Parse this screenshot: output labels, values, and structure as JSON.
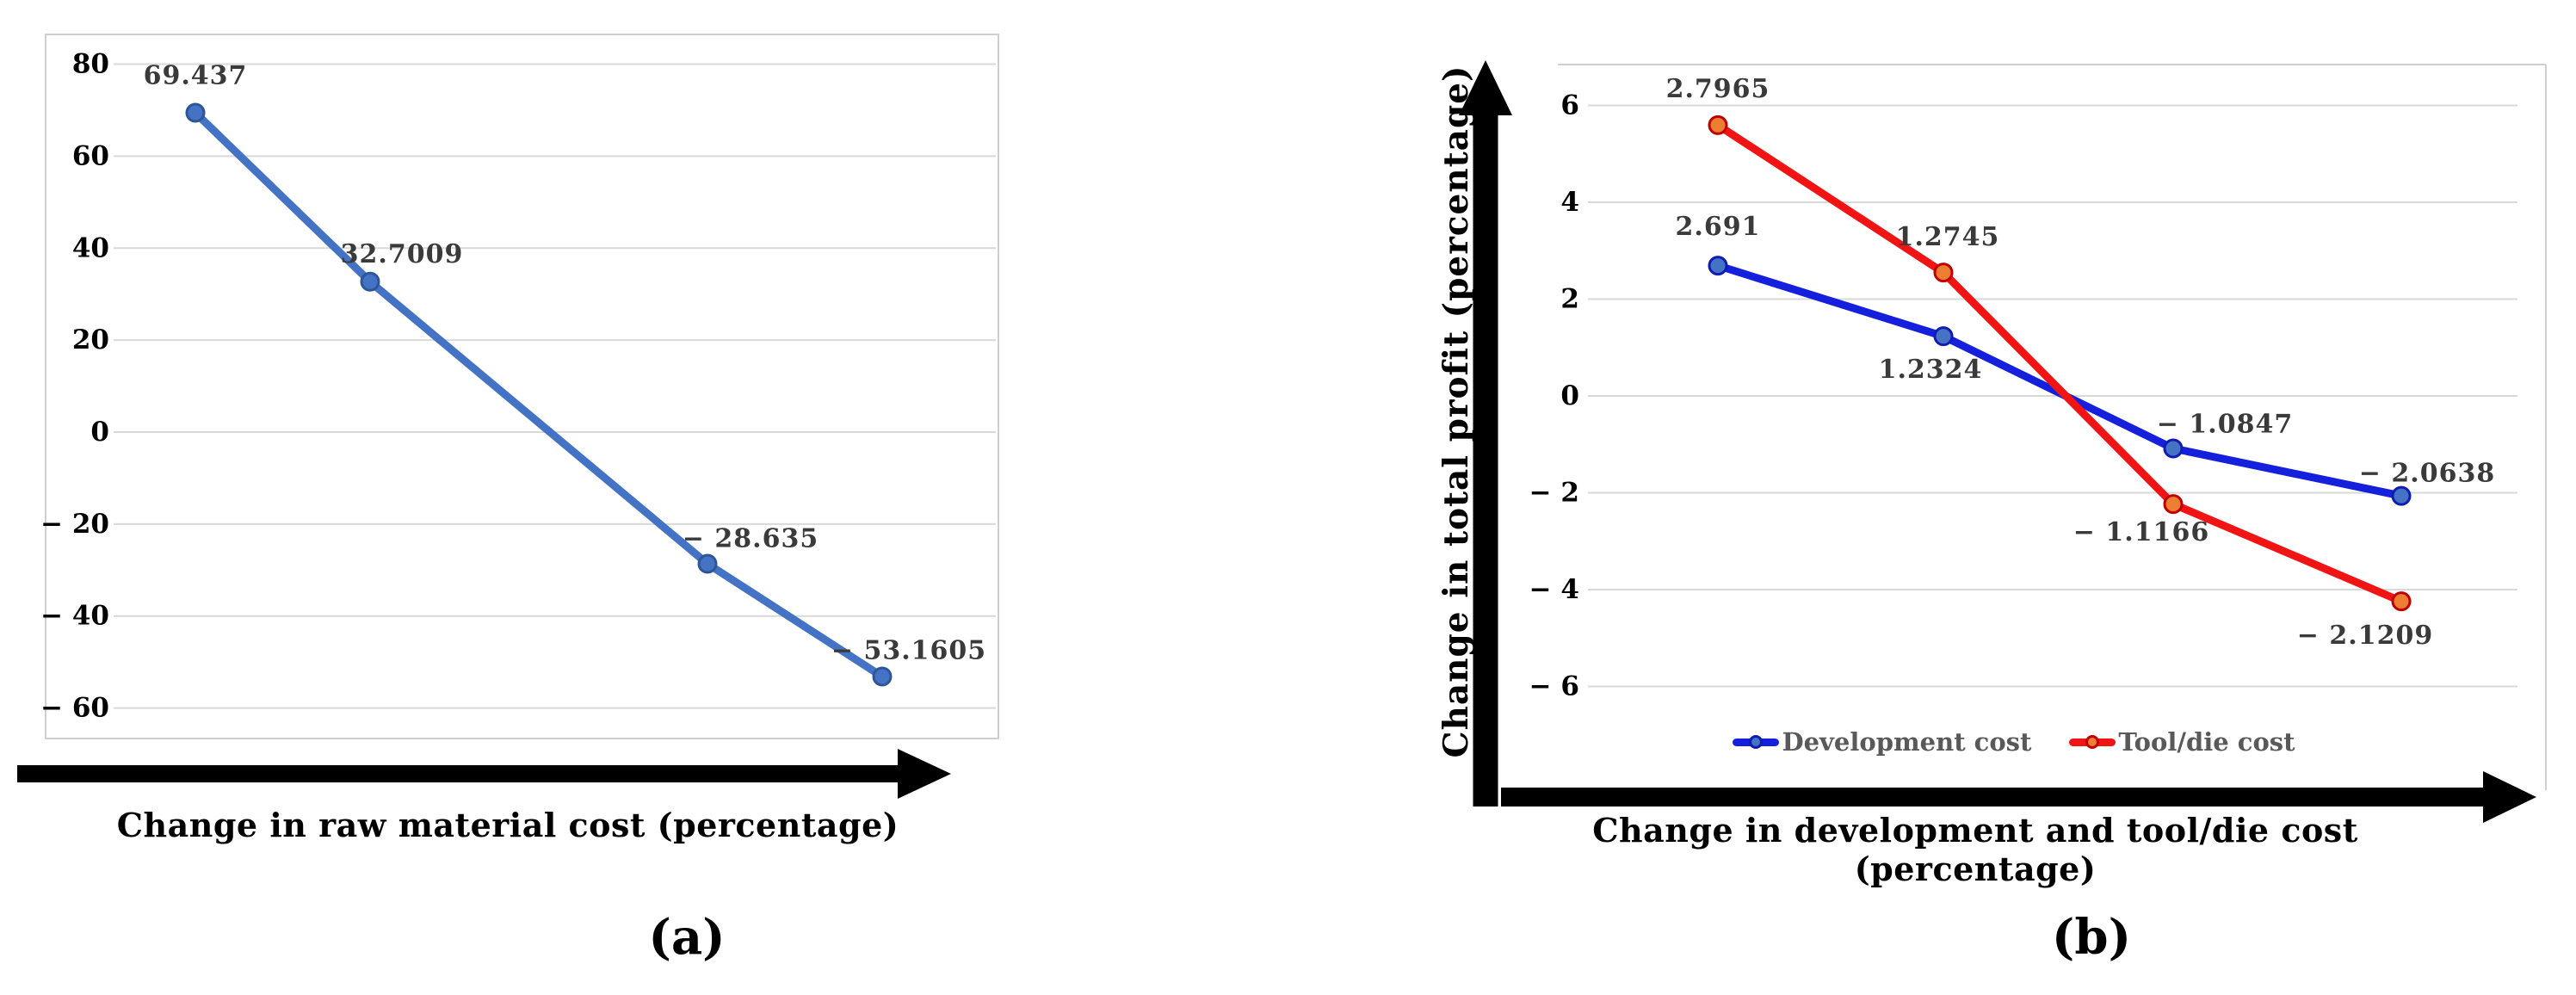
{
  "page": {
    "background": "#ffffff",
    "captions": {
      "a": "(a)",
      "b": "(b)"
    }
  },
  "chart_data": [
    {
      "id": "a",
      "type": "line",
      "caption": "(a)",
      "title": "",
      "xlabel": "Change in raw material cost (percentage)",
      "ylabel": "",
      "grid": true,
      "legend": false,
      "ylim": [
        -66,
        86
      ],
      "yticks": [
        {
          "value": 80,
          "label": "80"
        },
        {
          "value": 60,
          "label": "60"
        },
        {
          "value": 40,
          "label": "40"
        },
        {
          "value": 20,
          "label": "20"
        },
        {
          "value": 0,
          "label": "0"
        },
        {
          "value": -20,
          "label": "− 20"
        },
        {
          "value": -40,
          "label": "− 40"
        },
        {
          "value": -60,
          "label": "− 60"
        }
      ],
      "series": [
        {
          "color": "#4472C4",
          "marker_fill": "#4472C4",
          "marker_stroke": "#2E5597",
          "values": [
            69.437,
            32.7009,
            -28.635,
            -53.1605
          ],
          "labels": [
            "69.437",
            "32.7009",
            "− 28.635",
            "− 53.1605"
          ],
          "plotted_at_scale": 1
        }
      ],
      "colors": {
        "grid": "#D9D9D9",
        "frame": "#D0D0D0",
        "axis_arrow": "#000000",
        "tick_label": "#000000",
        "data_label": "#3A3A3A"
      }
    },
    {
      "id": "b",
      "type": "line",
      "caption": "(b)",
      "title": "",
      "xlabel": "Change in development and tool/die cost (percentage)",
      "ylabel": "Change in total profit (percentage)",
      "grid": true,
      "legend": true,
      "legend_position": "bottom-inside",
      "ylim": [
        -8.1,
        6.8
      ],
      "yticks": [
        {
          "value": 6,
          "label": "6"
        },
        {
          "value": 4,
          "label": "4"
        },
        {
          "value": 2,
          "label": "2"
        },
        {
          "value": 0,
          "label": "0"
        },
        {
          "value": -2,
          "label": "− 2"
        },
        {
          "value": -4,
          "label": "− 4"
        },
        {
          "value": -6,
          "label": "− 6"
        }
      ],
      "series": [
        {
          "name": "Development cost",
          "color": "#1520DC",
          "marker_fill": "#4472C4",
          "marker_stroke": "#101BB0",
          "values": [
            2.691,
            1.2324,
            -1.0847,
            -2.0638
          ],
          "labels": [
            "2.691",
            "1.2324",
            "− 1.0847",
            "− 2.0638"
          ],
          "plotted_at_scale": 1
        },
        {
          "name": "Tool/die cost",
          "color": "#F01414",
          "marker_fill": "#ED7D31",
          "marker_stroke": "#C00000",
          "values": [
            2.7965,
            1.2745,
            -1.1166,
            -2.1209
          ],
          "labels": [
            "2.7965",
            "1.2745",
            "− 1.1166",
            "− 2.1209"
          ],
          "plotted_at_scale": 2
        }
      ],
      "colors": {
        "grid": "#D9D9D9",
        "frame": "#D0D0D0",
        "axis_arrow": "#000000",
        "tick_label": "#000000",
        "data_label": "#3A3A3A",
        "legend_text": "#595959"
      }
    }
  ]
}
